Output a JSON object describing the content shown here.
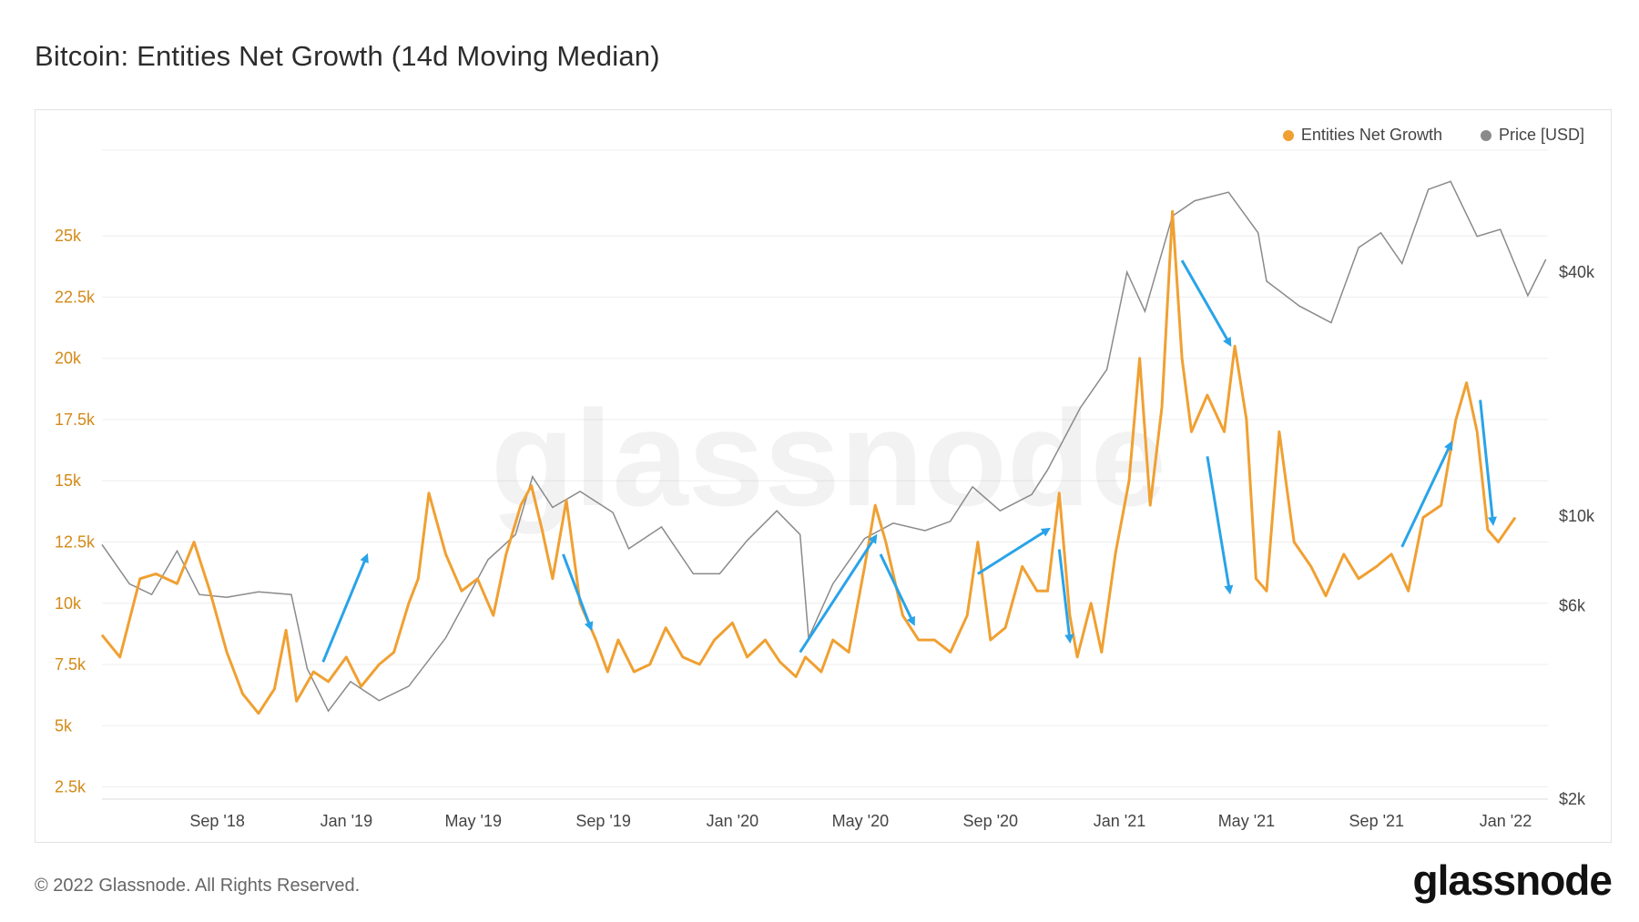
{
  "title": "Bitcoin: Entities Net Growth (14d Moving Median)",
  "footer": "© 2022 Glassnode. All Rights Reserved.",
  "brand": "glassnode",
  "watermark": "glassnode",
  "colors": {
    "entities": "#f0a032",
    "price": "#8a8a8a",
    "arrow": "#29a3e8",
    "grid": "#eeeeee"
  },
  "chart_data": {
    "type": "line",
    "legend": [
      "Entities Net Growth",
      "Price [USD]"
    ],
    "legend_position": "top-right",
    "grid": true,
    "y_left": {
      "ticks": [
        "2.5k",
        "5k",
        "7.5k",
        "10k",
        "12.5k",
        "15k",
        "17.5k",
        "20k",
        "22.5k",
        "25k"
      ],
      "values": [
        2500,
        5000,
        7500,
        10000,
        12500,
        15000,
        17500,
        20000,
        22500,
        25000
      ],
      "range": [
        2000,
        28500
      ]
    },
    "y_right": {
      "ticks": [
        "$2k",
        "$6k",
        "$10k",
        "$40k"
      ],
      "values": [
        2000,
        6000,
        10000,
        40000
      ],
      "scale": "log",
      "range": [
        2000,
        80000
      ]
    },
    "x": {
      "ticks": [
        "Sep '18",
        "Jan '19",
        "May '19",
        "Sep '19",
        "Jan '20",
        "May '20",
        "Sep '20",
        "Jan '21",
        "May '21",
        "Sep '21",
        "Jan '22"
      ],
      "range": [
        "2018-05-15",
        "2022-02-10"
      ]
    },
    "series": [
      {
        "name": "Entities Net Growth",
        "axis": "left",
        "points": [
          [
            "2018-05-15",
            8700
          ],
          [
            "2018-06-01",
            7800
          ],
          [
            "2018-06-20",
            11000
          ],
          [
            "2018-07-05",
            11200
          ],
          [
            "2018-07-25",
            10800
          ],
          [
            "2018-08-10",
            12500
          ],
          [
            "2018-08-25",
            10500
          ],
          [
            "2018-09-10",
            8000
          ],
          [
            "2018-09-25",
            6300
          ],
          [
            "2018-10-10",
            5500
          ],
          [
            "2018-10-25",
            6500
          ],
          [
            "2018-11-05",
            8900
          ],
          [
            "2018-11-15",
            6000
          ],
          [
            "2018-12-01",
            7200
          ],
          [
            "2018-12-15",
            6800
          ],
          [
            "2019-01-01",
            7800
          ],
          [
            "2019-01-15",
            6600
          ],
          [
            "2019-02-01",
            7500
          ],
          [
            "2019-02-15",
            8000
          ],
          [
            "2019-03-01",
            10000
          ],
          [
            "2019-03-10",
            11000
          ],
          [
            "2019-03-20",
            14500
          ],
          [
            "2019-04-05",
            12000
          ],
          [
            "2019-04-20",
            10500
          ],
          [
            "2019-05-05",
            11000
          ],
          [
            "2019-05-20",
            9500
          ],
          [
            "2019-06-01",
            12000
          ],
          [
            "2019-06-15",
            14000
          ],
          [
            "2019-06-25",
            14800
          ],
          [
            "2019-07-05",
            13000
          ],
          [
            "2019-07-15",
            11000
          ],
          [
            "2019-07-28",
            14200
          ],
          [
            "2019-08-10",
            10000
          ],
          [
            "2019-08-25",
            8500
          ],
          [
            "2019-09-05",
            7200
          ],
          [
            "2019-09-15",
            8500
          ],
          [
            "2019-09-30",
            7200
          ],
          [
            "2019-10-15",
            7500
          ],
          [
            "2019-10-30",
            9000
          ],
          [
            "2019-11-15",
            7800
          ],
          [
            "2019-12-01",
            7500
          ],
          [
            "2019-12-15",
            8500
          ],
          [
            "2020-01-01",
            9200
          ],
          [
            "2020-01-15",
            7800
          ],
          [
            "2020-02-01",
            8500
          ],
          [
            "2020-02-15",
            7600
          ],
          [
            "2020-03-01",
            7000
          ],
          [
            "2020-03-10",
            7800
          ],
          [
            "2020-03-25",
            7200
          ],
          [
            "2020-04-05",
            8500
          ],
          [
            "2020-04-20",
            8000
          ],
          [
            "2020-05-05",
            11500
          ],
          [
            "2020-05-15",
            14000
          ],
          [
            "2020-05-25",
            12500
          ],
          [
            "2020-06-10",
            9500
          ],
          [
            "2020-06-25",
            8500
          ],
          [
            "2020-07-10",
            8500
          ],
          [
            "2020-07-25",
            8000
          ],
          [
            "2020-08-10",
            9500
          ],
          [
            "2020-08-20",
            12500
          ],
          [
            "2020-09-01",
            8500
          ],
          [
            "2020-09-15",
            9000
          ],
          [
            "2020-10-01",
            11500
          ],
          [
            "2020-10-15",
            10500
          ],
          [
            "2020-10-25",
            10500
          ],
          [
            "2020-11-05",
            14500
          ],
          [
            "2020-11-15",
            9500
          ],
          [
            "2020-11-22",
            7800
          ],
          [
            "2020-12-05",
            10000
          ],
          [
            "2020-12-15",
            8000
          ],
          [
            "2020-12-28",
            12000
          ],
          [
            "2021-01-10",
            15000
          ],
          [
            "2021-01-20",
            20000
          ],
          [
            "2021-01-30",
            14000
          ],
          [
            "2021-02-10",
            18000
          ],
          [
            "2021-02-20",
            26000
          ],
          [
            "2021-03-01",
            20000
          ],
          [
            "2021-03-10",
            17000
          ],
          [
            "2021-03-25",
            18500
          ],
          [
            "2021-04-10",
            17000
          ],
          [
            "2021-04-20",
            20500
          ],
          [
            "2021-05-01",
            17500
          ],
          [
            "2021-05-10",
            11000
          ],
          [
            "2021-05-20",
            10500
          ],
          [
            "2021-06-01",
            17000
          ],
          [
            "2021-06-15",
            12500
          ],
          [
            "2021-07-01",
            11500
          ],
          [
            "2021-07-15",
            10300
          ],
          [
            "2021-08-01",
            12000
          ],
          [
            "2021-08-15",
            11000
          ],
          [
            "2021-09-01",
            11500
          ],
          [
            "2021-09-15",
            12000
          ],
          [
            "2021-10-01",
            10500
          ],
          [
            "2021-10-15",
            13500
          ],
          [
            "2021-11-01",
            14000
          ],
          [
            "2021-11-15",
            17500
          ],
          [
            "2021-11-25",
            19000
          ],
          [
            "2021-12-05",
            17000
          ],
          [
            "2021-12-15",
            13000
          ],
          [
            "2021-12-25",
            12500
          ],
          [
            "2022-01-10",
            13500
          ]
        ]
      },
      {
        "name": "Price [USD]",
        "axis": "right",
        "points": [
          [
            "2018-05-15",
            8500
          ],
          [
            "2018-06-10",
            6800
          ],
          [
            "2018-07-01",
            6400
          ],
          [
            "2018-07-25",
            8200
          ],
          [
            "2018-08-15",
            6400
          ],
          [
            "2018-09-10",
            6300
          ],
          [
            "2018-10-10",
            6500
          ],
          [
            "2018-11-10",
            6400
          ],
          [
            "2018-11-25",
            4200
          ],
          [
            "2018-12-15",
            3300
          ],
          [
            "2019-01-05",
            3900
          ],
          [
            "2019-02-01",
            3500
          ],
          [
            "2019-03-01",
            3800
          ],
          [
            "2019-04-05",
            5000
          ],
          [
            "2019-05-15",
            7800
          ],
          [
            "2019-06-10",
            9000
          ],
          [
            "2019-06-26",
            12500
          ],
          [
            "2019-07-15",
            10500
          ],
          [
            "2019-08-10",
            11500
          ],
          [
            "2019-09-10",
            10200
          ],
          [
            "2019-09-25",
            8300
          ],
          [
            "2019-10-26",
            9400
          ],
          [
            "2019-11-25",
            7200
          ],
          [
            "2019-12-20",
            7200
          ],
          [
            "2020-01-15",
            8700
          ],
          [
            "2020-02-12",
            10300
          ],
          [
            "2020-03-05",
            9000
          ],
          [
            "2020-03-13",
            5000
          ],
          [
            "2020-04-05",
            6800
          ],
          [
            "2020-05-05",
            8800
          ],
          [
            "2020-06-01",
            9600
          ],
          [
            "2020-07-01",
            9200
          ],
          [
            "2020-07-25",
            9700
          ],
          [
            "2020-08-15",
            11800
          ],
          [
            "2020-09-10",
            10300
          ],
          [
            "2020-10-10",
            11300
          ],
          [
            "2020-10-25",
            13000
          ],
          [
            "2020-11-25",
            18500
          ],
          [
            "2020-12-20",
            23000
          ],
          [
            "2021-01-08",
            40000
          ],
          [
            "2021-01-25",
            32000
          ],
          [
            "2021-02-20",
            55000
          ],
          [
            "2021-03-13",
            60000
          ],
          [
            "2021-04-14",
            63000
          ],
          [
            "2021-05-12",
            50000
          ],
          [
            "2021-05-20",
            38000
          ],
          [
            "2021-06-20",
            33000
          ],
          [
            "2021-07-20",
            30000
          ],
          [
            "2021-08-15",
            46000
          ],
          [
            "2021-09-05",
            50000
          ],
          [
            "2021-09-25",
            42000
          ],
          [
            "2021-10-20",
            64000
          ],
          [
            "2021-11-10",
            67000
          ],
          [
            "2021-12-05",
            49000
          ],
          [
            "2021-12-27",
            51000
          ],
          [
            "2022-01-22",
            35000
          ],
          [
            "2022-02-08",
            43000
          ]
        ]
      }
    ],
    "annotations": [
      {
        "type": "arrow",
        "from": [
          "2018-12-10",
          7600
        ],
        "to": [
          "2019-01-20",
          11900
        ]
      },
      {
        "type": "arrow",
        "from": [
          "2019-07-25",
          12000
        ],
        "to": [
          "2019-08-20",
          9000
        ]
      },
      {
        "type": "arrow",
        "from": [
          "2020-03-05",
          8000
        ],
        "to": [
          "2020-05-15",
          12700
        ]
      },
      {
        "type": "arrow",
        "from": [
          "2020-05-20",
          12000
        ],
        "to": [
          "2020-06-20",
          9200
        ]
      },
      {
        "type": "arrow",
        "from": [
          "2020-08-20",
          11200
        ],
        "to": [
          "2020-10-25",
          13000
        ]
      },
      {
        "type": "arrow",
        "from": [
          "2020-11-05",
          12200
        ],
        "to": [
          "2020-11-15",
          8500
        ]
      },
      {
        "type": "arrow",
        "from": [
          "2021-03-01",
          24000
        ],
        "to": [
          "2021-04-15",
          20600
        ]
      },
      {
        "type": "arrow",
        "from": [
          "2021-03-25",
          16000
        ],
        "to": [
          "2021-04-15",
          10500
        ]
      },
      {
        "type": "arrow",
        "from": [
          "2021-09-25",
          12300
        ],
        "to": [
          "2021-11-10",
          16500
        ]
      },
      {
        "type": "arrow",
        "from": [
          "2021-12-08",
          18300
        ],
        "to": [
          "2021-12-20",
          13300
        ]
      }
    ]
  }
}
